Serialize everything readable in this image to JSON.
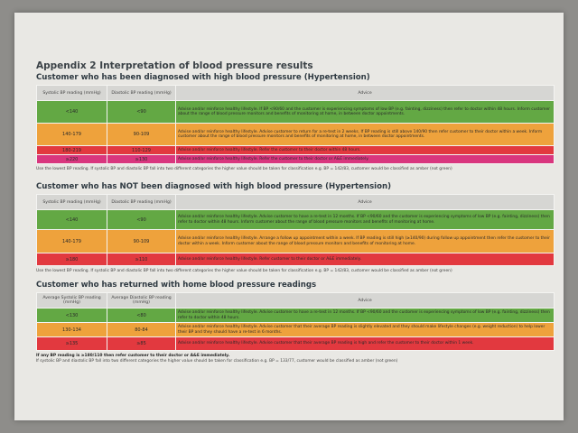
{
  "title": "Appendix 2 Interpretation of blood pressure results",
  "sections": [
    {
      "heading": "Customer who has been diagnosed with high blood pressure (Hypertension)",
      "headers": [
        "Systolic BP reading (mmHg)",
        "Diastolic BP reading (mmHg)",
        "Advice"
      ],
      "rows": [
        {
          "color": "#63a844",
          "cells": [
            "<140",
            "<90",
            "Advise and/or reinforce healthy lifestyle. If BP <90/60 and the customer is experiencing symptoms of low BP (e.g. fainting, dizziness) then refer to doctor within 48 hours. Inform customer about the range of blood pressure monitors and benefits of monitoring at home, in between doctor appointments."
          ]
        },
        {
          "color": "#eea23c",
          "cells": [
            "140-179",
            "90-109",
            "Advise and/or reinforce healthy lifestyle. Advise customer to return for a re-test in 2 weeks. If BP reading is still above 140/90 then refer customer to their doctor within a week. Inform customer about the range of blood pressure monitors and benefits of monitoring at home, in between doctor appointments."
          ]
        },
        {
          "color": "#e2393f",
          "cells": [
            "180-219",
            "110-129",
            "Advise and/or reinforce healthy lifestyle. Refer the customer to their doctor within 48 hours."
          ]
        },
        {
          "color": "#d9367e",
          "cells": [
            "≥220",
            "≥130",
            "Advise and/or reinforce healthy lifestyle. Refer the customer to their doctor or A&E immediately."
          ]
        }
      ],
      "notes": [
        {
          "text": "Use the lowest BP reading. If systolic BP and diastolic BP fall into two different categories the higher value should be taken for classification e.g. BP = 142/83, customer would be classified as amber (not green)",
          "bold": false
        }
      ]
    },
    {
      "heading": "Customer who has NOT been diagnosed with high blood pressure (Hypertension)",
      "headers": [
        "Systolic BP reading (mmHg)",
        "Diastolic BP reading (mmHg)",
        "Advice"
      ],
      "rows": [
        {
          "color": "#63a844",
          "cells": [
            "<140",
            "<90",
            "Advise and/or reinforce healthy lifestyle. Advise customer to have a re-test in 12 months. If BP <90/60 and the customer is experiencing symptoms of low BP (e.g. fainting, dizziness) then refer to doctor within 48 hours. Inform customer about the range of blood pressure monitors and benefits of monitoring at home."
          ]
        },
        {
          "color": "#eea23c",
          "cells": [
            "140-179",
            "90-109",
            "Advise and/or reinforce healthy lifestyle. Arrange a follow up appointment within a week. If BP reading is still high (≥140/90) during follow up appointment then refer the customer to their doctor within a week. Inform customer about the range of blood pressure monitors and benefits of monitoring at home."
          ]
        },
        {
          "color": "#e2393f",
          "cells": [
            "≥180",
            "≥110",
            "Advise and/or reinforce healthy lifestyle. Refer customer to their doctor or A&E immediately."
          ]
        }
      ],
      "notes": [
        {
          "text": "Use the lowest BP reading. If systolic BP and diastolic BP fall into two different categories the higher value should be taken for classification e.g. BP = 142/83, customer would be classified as amber (not green)",
          "bold": false
        }
      ]
    },
    {
      "heading": "Customer who has returned with home blood pressure readings",
      "headers": [
        "Average Systolic BP reading (mmHg)",
        "Average Diastolic BP reading (mmHg)",
        "Advice"
      ],
      "rows": [
        {
          "color": "#63a844",
          "cells": [
            "<130",
            "<80",
            "Advise and/or reinforce healthy lifestyle. Advise customer to have a re-test in 12 months. If BP <90/60 and the customer is experiencing symptoms of low BP (e.g. fainting, dizziness) then refer to doctor within 48 hours."
          ]
        },
        {
          "color": "#eea23c",
          "cells": [
            "130-134",
            "80-84",
            "Advise and/or reinforce healthy lifestyle. Advise customer that their average BP reading is slightly elevated and they should make lifestyle changes (e.g. weight reduction) to help lower their BP and they should have a re-test in 6 months."
          ]
        },
        {
          "color": "#e2393f",
          "cells": [
            "≥135",
            "≥85",
            "Advise and/or reinforce healthy lifestyle. Advise customer that their average BP reading is high and refer the customer to their doctor within 1 week."
          ]
        }
      ],
      "notes": [
        {
          "text": "If any BP reading is ≥180/110 then refer customer to their doctor or A&E immediately.",
          "bold": true
        },
        {
          "text": "If systolic BP and diastolic BP fall into two different categories the higher value should be taken for classification e.g. BP = 133/77, customer would be classified as amber (not green)",
          "bold": false
        }
      ]
    }
  ]
}
